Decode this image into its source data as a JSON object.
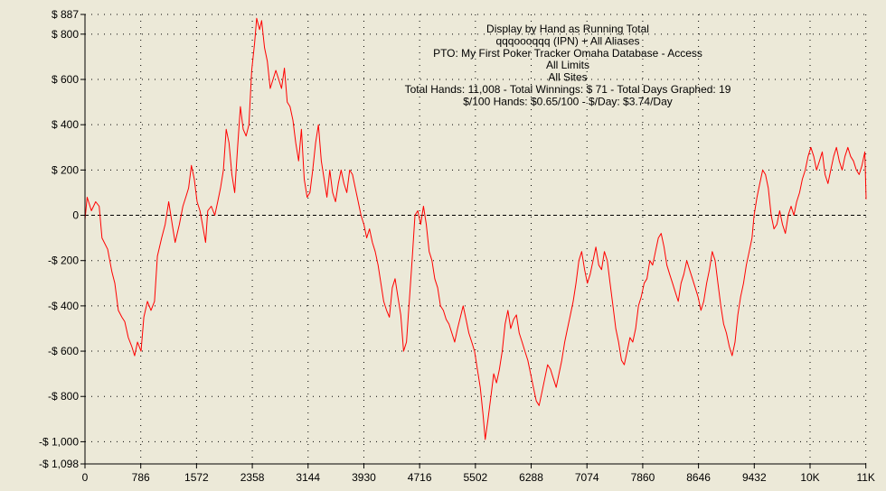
{
  "chart_data": {
    "type": "line",
    "title_lines": [
      "Display by Hand as Running Total",
      "qqqoooqqq (IPN) + All Aliases",
      "PTO: My First Poker Tracker Omaha Database - Access",
      "All Limits",
      "All Sites",
      "Total Hands: 11,008 - Total Winnings: $ 71 - Total Days Graphed: 19",
      "$/100 Hands: $0.65/100 - $/Day: $3.74/Day"
    ],
    "xlim": [
      0,
      11008
    ],
    "ylim": [
      -1098,
      887
    ],
    "x_ticks": [
      {
        "value": 0,
        "label": "0"
      },
      {
        "value": 786,
        "label": "786"
      },
      {
        "value": 1572,
        "label": "1572"
      },
      {
        "value": 2358,
        "label": "2358"
      },
      {
        "value": 3144,
        "label": "3144"
      },
      {
        "value": 3930,
        "label": "3930"
      },
      {
        "value": 4716,
        "label": "4716"
      },
      {
        "value": 5502,
        "label": "5502"
      },
      {
        "value": 6288,
        "label": "6288"
      },
      {
        "value": 7074,
        "label": "7074"
      },
      {
        "value": 7860,
        "label": "7860"
      },
      {
        "value": 8646,
        "label": "8646"
      },
      {
        "value": 9432,
        "label": "9432"
      },
      {
        "value": 10218,
        "label": "10K"
      },
      {
        "value": 11004,
        "label": "11K"
      }
    ],
    "y_ticks": [
      {
        "value": 887,
        "label": "$ 887"
      },
      {
        "value": 800,
        "label": "$ 800"
      },
      {
        "value": 600,
        "label": "$ 600"
      },
      {
        "value": 400,
        "label": "$ 400"
      },
      {
        "value": 200,
        "label": "$ 200"
      },
      {
        "value": 0,
        "label": "0"
      },
      {
        "value": -200,
        "label": "-$ 200"
      },
      {
        "value": -400,
        "label": "-$ 400"
      },
      {
        "value": -600,
        "label": "-$ 600"
      },
      {
        "value": -800,
        "label": "-$ 800"
      },
      {
        "value": -1000,
        "label": "-$ 1,000"
      },
      {
        "value": -1098,
        "label": "-$ 1,098"
      }
    ],
    "grid": true,
    "zero_line": true,
    "series": [
      {
        "color": "#ff0000",
        "points": [
          [
            0,
            -20
          ],
          [
            30,
            80
          ],
          [
            90,
            20
          ],
          [
            150,
            60
          ],
          [
            200,
            40
          ],
          [
            240,
            -100
          ],
          [
            320,
            -150
          ],
          [
            380,
            -250
          ],
          [
            420,
            -300
          ],
          [
            470,
            -420
          ],
          [
            520,
            -450
          ],
          [
            560,
            -470
          ],
          [
            610,
            -540
          ],
          [
            660,
            -580
          ],
          [
            700,
            -620
          ],
          [
            740,
            -560
          ],
          [
            790,
            -600
          ],
          [
            830,
            -450
          ],
          [
            880,
            -380
          ],
          [
            930,
            -420
          ],
          [
            980,
            -380
          ],
          [
            1020,
            -180
          ],
          [
            1080,
            -100
          ],
          [
            1130,
            -40
          ],
          [
            1180,
            60
          ],
          [
            1230,
            -40
          ],
          [
            1270,
            -120
          ],
          [
            1330,
            -40
          ],
          [
            1380,
            40
          ],
          [
            1420,
            80
          ],
          [
            1460,
            120
          ],
          [
            1500,
            220
          ],
          [
            1540,
            160
          ],
          [
            1580,
            60
          ],
          [
            1620,
            20
          ],
          [
            1650,
            -30
          ],
          [
            1700,
            -120
          ],
          [
            1730,
            20
          ],
          [
            1780,
            40
          ],
          [
            1830,
            0
          ],
          [
            1870,
            60
          ],
          [
            1910,
            120
          ],
          [
            1950,
            200
          ],
          [
            1990,
            380
          ],
          [
            2030,
            320
          ],
          [
            2070,
            180
          ],
          [
            2110,
            100
          ],
          [
            2150,
            300
          ],
          [
            2190,
            480
          ],
          [
            2230,
            380
          ],
          [
            2270,
            350
          ],
          [
            2310,
            400
          ],
          [
            2350,
            640
          ],
          [
            2390,
            760
          ],
          [
            2420,
            870
          ],
          [
            2460,
            820
          ],
          [
            2490,
            860
          ],
          [
            2530,
            740
          ],
          [
            2570,
            680
          ],
          [
            2610,
            560
          ],
          [
            2650,
            600
          ],
          [
            2690,
            640
          ],
          [
            2730,
            600
          ],
          [
            2770,
            560
          ],
          [
            2810,
            650
          ],
          [
            2850,
            500
          ],
          [
            2890,
            480
          ],
          [
            2930,
            420
          ],
          [
            2970,
            320
          ],
          [
            3010,
            240
          ],
          [
            3050,
            380
          ],
          [
            3090,
            160
          ],
          [
            3130,
            80
          ],
          [
            3170,
            100
          ],
          [
            3210,
            200
          ],
          [
            3250,
            320
          ],
          [
            3290,
            400
          ],
          [
            3330,
            240
          ],
          [
            3370,
            160
          ],
          [
            3410,
            80
          ],
          [
            3450,
            200
          ],
          [
            3490,
            100
          ],
          [
            3530,
            60
          ],
          [
            3570,
            140
          ],
          [
            3610,
            200
          ],
          [
            3650,
            140
          ],
          [
            3690,
            100
          ],
          [
            3730,
            200
          ],
          [
            3770,
            180
          ],
          [
            3810,
            120
          ],
          [
            3850,
            60
          ],
          [
            3890,
            0
          ],
          [
            3930,
            -40
          ],
          [
            3970,
            -100
          ],
          [
            4010,
            -60
          ],
          [
            4050,
            -120
          ],
          [
            4090,
            -160
          ],
          [
            4130,
            -220
          ],
          [
            4170,
            -300
          ],
          [
            4210,
            -380
          ],
          [
            4250,
            -420
          ],
          [
            4290,
            -450
          ],
          [
            4330,
            -320
          ],
          [
            4370,
            -280
          ],
          [
            4410,
            -360
          ],
          [
            4450,
            -440
          ],
          [
            4490,
            -600
          ],
          [
            4530,
            -560
          ],
          [
            4570,
            -380
          ],
          [
            4610,
            -200
          ],
          [
            4650,
            0
          ],
          [
            4690,
            20
          ],
          [
            4730,
            -40
          ],
          [
            4770,
            40
          ],
          [
            4810,
            -40
          ],
          [
            4850,
            -160
          ],
          [
            4890,
            -200
          ],
          [
            4930,
            -280
          ],
          [
            4970,
            -320
          ],
          [
            5010,
            -400
          ],
          [
            5050,
            -420
          ],
          [
            5090,
            -460
          ],
          [
            5130,
            -480
          ],
          [
            5170,
            -520
          ],
          [
            5210,
            -560
          ],
          [
            5250,
            -500
          ],
          [
            5290,
            -450
          ],
          [
            5330,
            -400
          ],
          [
            5370,
            -460
          ],
          [
            5410,
            -520
          ],
          [
            5450,
            -560
          ],
          [
            5490,
            -600
          ],
          [
            5530,
            -680
          ],
          [
            5570,
            -760
          ],
          [
            5610,
            -880
          ],
          [
            5640,
            -990
          ],
          [
            5680,
            -900
          ],
          [
            5720,
            -800
          ],
          [
            5760,
            -700
          ],
          [
            5800,
            -740
          ],
          [
            5840,
            -680
          ],
          [
            5880,
            -600
          ],
          [
            5920,
            -480
          ],
          [
            5960,
            -420
          ],
          [
            6000,
            -500
          ],
          [
            6040,
            -460
          ],
          [
            6080,
            -440
          ],
          [
            6120,
            -520
          ],
          [
            6160,
            -560
          ],
          [
            6200,
            -600
          ],
          [
            6240,
            -640
          ],
          [
            6280,
            -700
          ],
          [
            6320,
            -760
          ],
          [
            6360,
            -820
          ],
          [
            6400,
            -840
          ],
          [
            6440,
            -780
          ],
          [
            6480,
            -720
          ],
          [
            6520,
            -660
          ],
          [
            6560,
            -680
          ],
          [
            6600,
            -720
          ],
          [
            6640,
            -760
          ],
          [
            6680,
            -700
          ],
          [
            6720,
            -640
          ],
          [
            6760,
            -560
          ],
          [
            6800,
            -500
          ],
          [
            6840,
            -440
          ],
          [
            6880,
            -380
          ],
          [
            6920,
            -300
          ],
          [
            6960,
            -200
          ],
          [
            7000,
            -160
          ],
          [
            7040,
            -240
          ],
          [
            7080,
            -300
          ],
          [
            7120,
            -260
          ],
          [
            7160,
            -200
          ],
          [
            7200,
            -140
          ],
          [
            7240,
            -220
          ],
          [
            7280,
            -240
          ],
          [
            7320,
            -160
          ],
          [
            7360,
            -200
          ],
          [
            7400,
            -300
          ],
          [
            7440,
            -400
          ],
          [
            7480,
            -500
          ],
          [
            7520,
            -560
          ],
          [
            7560,
            -640
          ],
          [
            7600,
            -660
          ],
          [
            7640,
            -600
          ],
          [
            7680,
            -540
          ],
          [
            7720,
            -560
          ],
          [
            7760,
            -500
          ],
          [
            7800,
            -400
          ],
          [
            7840,
            -360
          ],
          [
            7880,
            -300
          ],
          [
            7920,
            -280
          ],
          [
            7960,
            -200
          ],
          [
            8000,
            -220
          ],
          [
            8040,
            -160
          ],
          [
            8080,
            -100
          ],
          [
            8120,
            -80
          ],
          [
            8160,
            -140
          ],
          [
            8200,
            -220
          ],
          [
            8240,
            -260
          ],
          [
            8280,
            -300
          ],
          [
            8320,
            -340
          ],
          [
            8360,
            -380
          ],
          [
            8400,
            -300
          ],
          [
            8440,
            -260
          ],
          [
            8480,
            -200
          ],
          [
            8520,
            -240
          ],
          [
            8560,
            -280
          ],
          [
            8600,
            -320
          ],
          [
            8640,
            -360
          ],
          [
            8680,
            -420
          ],
          [
            8720,
            -380
          ],
          [
            8760,
            -300
          ],
          [
            8800,
            -240
          ],
          [
            8840,
            -160
          ],
          [
            8880,
            -200
          ],
          [
            8920,
            -300
          ],
          [
            8960,
            -400
          ],
          [
            9000,
            -480
          ],
          [
            9040,
            -520
          ],
          [
            9080,
            -580
          ],
          [
            9120,
            -620
          ],
          [
            9160,
            -560
          ],
          [
            9200,
            -440
          ],
          [
            9240,
            -360
          ],
          [
            9280,
            -300
          ],
          [
            9320,
            -220
          ],
          [
            9360,
            -160
          ],
          [
            9400,
            -100
          ],
          [
            9430,
            0
          ],
          [
            9470,
            80
          ],
          [
            9510,
            140
          ],
          [
            9550,
            200
          ],
          [
            9590,
            180
          ],
          [
            9630,
            120
          ],
          [
            9670,
            0
          ],
          [
            9710,
            -60
          ],
          [
            9750,
            -40
          ],
          [
            9790,
            20
          ],
          [
            9830,
            -40
          ],
          [
            9870,
            -80
          ],
          [
            9910,
            0
          ],
          [
            9950,
            40
          ],
          [
            9990,
            0
          ],
          [
            10030,
            60
          ],
          [
            10070,
            100
          ],
          [
            10110,
            160
          ],
          [
            10150,
            200
          ],
          [
            10190,
            260
          ],
          [
            10230,
            300
          ],
          [
            10270,
            260
          ],
          [
            10310,
            200
          ],
          [
            10350,
            240
          ],
          [
            10390,
            280
          ],
          [
            10430,
            180
          ],
          [
            10470,
            140
          ],
          [
            10510,
            200
          ],
          [
            10550,
            260
          ],
          [
            10590,
            300
          ],
          [
            10630,
            240
          ],
          [
            10670,
            200
          ],
          [
            10710,
            260
          ],
          [
            10750,
            300
          ],
          [
            10790,
            260
          ],
          [
            10830,
            240
          ],
          [
            10870,
            200
          ],
          [
            10910,
            180
          ],
          [
            10950,
            220
          ],
          [
            10990,
            280
          ],
          [
            11008,
            71
          ]
        ]
      }
    ]
  }
}
